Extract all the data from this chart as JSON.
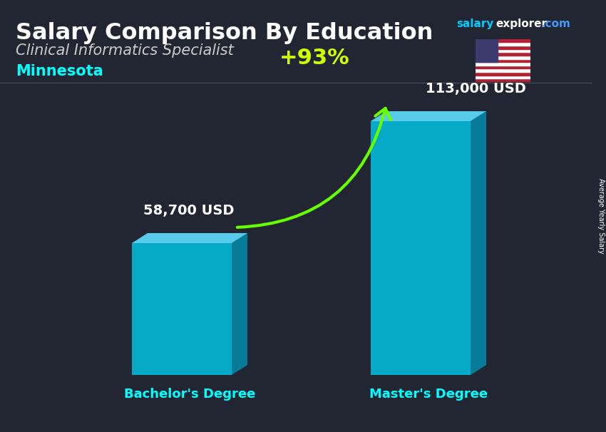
{
  "title": "Salary Comparison By Education",
  "subtitle": "Clinical Informatics Specialist",
  "location": "Minnesota",
  "categories": [
    "Bachelor's Degree",
    "Master's Degree"
  ],
  "values": [
    58700,
    113000
  ],
  "value_labels": [
    "58,700 USD",
    "113,000 USD"
  ],
  "pct_change": "+93%",
  "bar_color_face": "#00C8E8",
  "bar_color_side": "#0090B0",
  "bar_color_top": "#60DEFF",
  "ylabel": "Average Yearly Salary",
  "brand_color_salary": "#00CCFF",
  "brand_color_explorer": "#FFFFFF",
  "brand_color_com": "#4499FF",
  "title_color": "#FFFFFF",
  "subtitle_color": "#CCCCCC",
  "location_color": "#00FFFF",
  "category_color": "#00FFFF",
  "value_color": "#FFFFFF",
  "pct_color": "#CCFF00",
  "arrow_color": "#66FF00",
  "bg_overlay": "#1a1a2a",
  "bg_color": "#2a2a3a"
}
